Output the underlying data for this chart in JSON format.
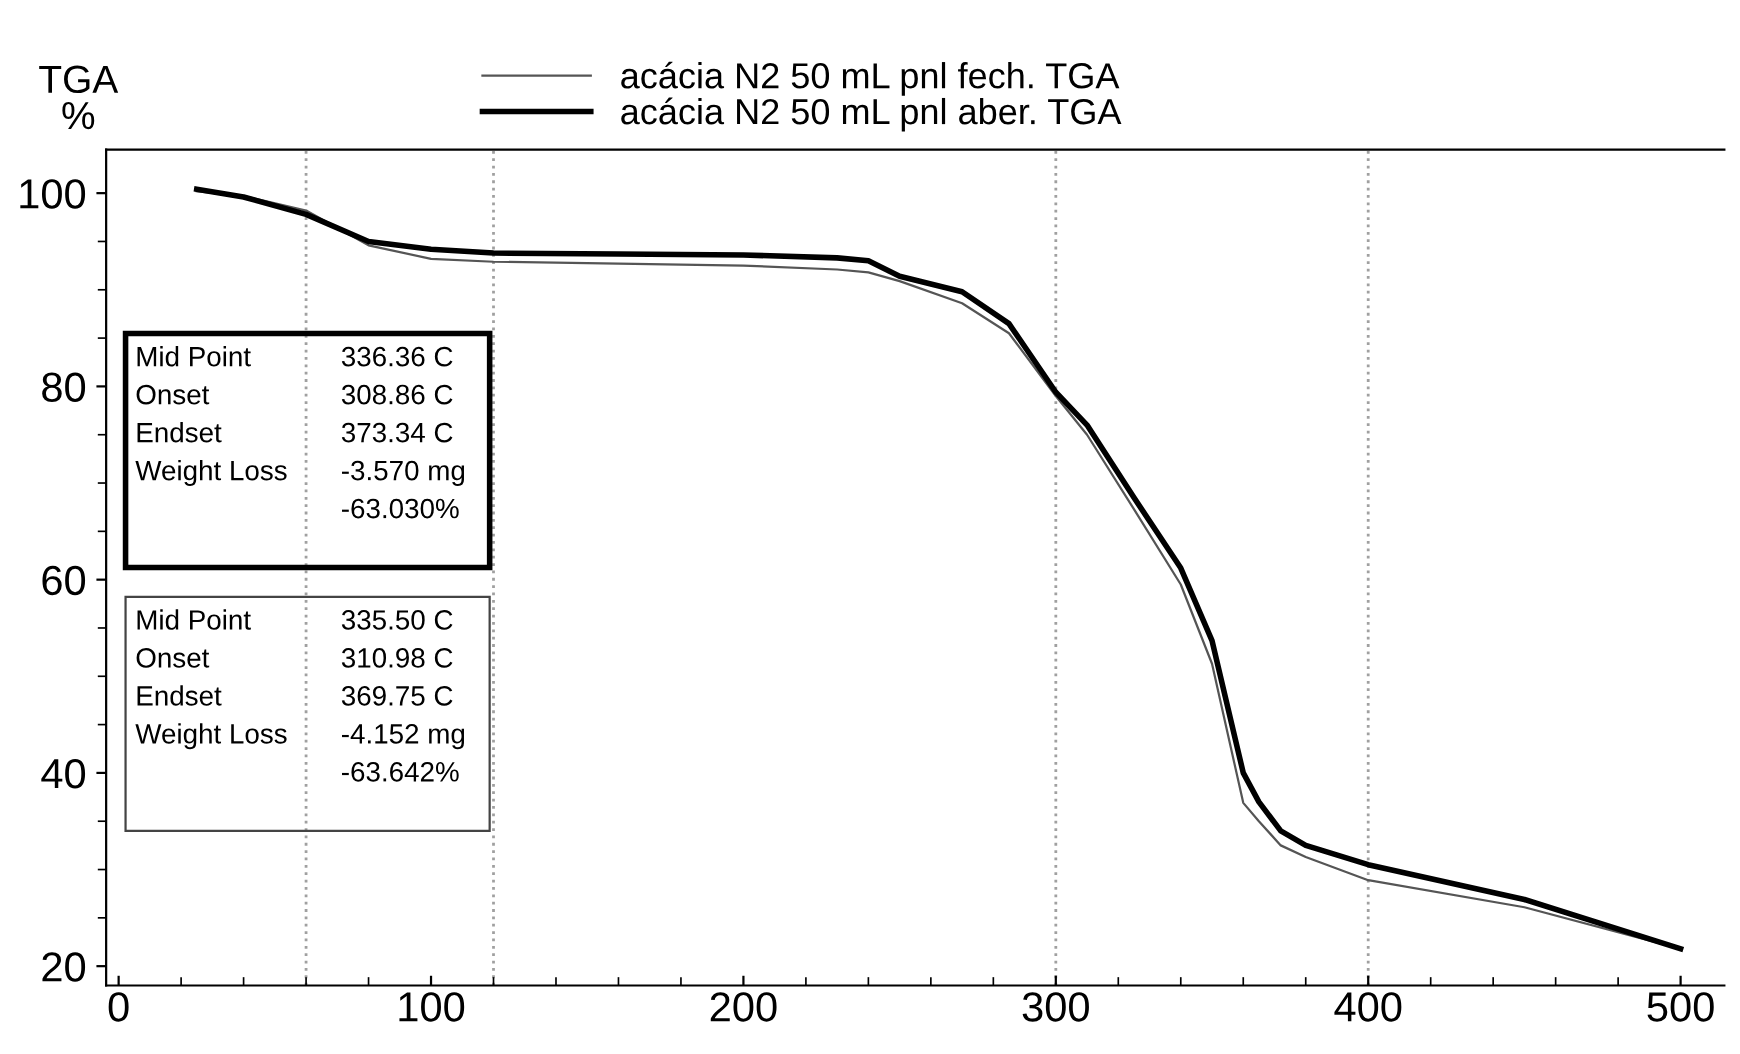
{
  "chart_data": {
    "type": "line",
    "ylabel": "TGA\n%",
    "legend": "top",
    "xlim": [
      -4,
      514
    ],
    "ylim": [
      18,
      104.5
    ],
    "xticks": [
      0,
      100,
      200,
      300,
      400,
      500
    ],
    "yticks": [
      20,
      40,
      60,
      80,
      100
    ],
    "grid": false,
    "series": [
      {
        "name": "acácia N2 50 mL pnl fech. TGA",
        "color": "#555555",
        "x": [
          25,
          40,
          60,
          80,
          100,
          120,
          160,
          200,
          230,
          240,
          250,
          270,
          285,
          300,
          310,
          325,
          340,
          350,
          360,
          365,
          372,
          380,
          400,
          450,
          500
        ],
        "values": [
          100.2,
          99.7,
          98.2,
          94.6,
          93.2,
          92.9,
          92.7,
          92.5,
          92.1,
          91.8,
          90.9,
          88.6,
          85.5,
          79.0,
          75.0,
          67.3,
          59.5,
          51.3,
          36.9,
          35.0,
          32.5,
          31.3,
          28.9,
          26.1,
          21.8
        ]
      },
      {
        "name": "acácia N2 50 mL pnl aber. TGA",
        "color": "#000000",
        "x": [
          25,
          40,
          60,
          80,
          100,
          120,
          160,
          200,
          230,
          240,
          250,
          270,
          285,
          300,
          310,
          325,
          340,
          350,
          360,
          365,
          372,
          380,
          400,
          450,
          500
        ],
        "values": [
          100.4,
          99.6,
          97.8,
          95.0,
          94.2,
          93.8,
          93.7,
          93.6,
          93.3,
          93.0,
          91.4,
          89.8,
          86.5,
          79.4,
          76.0,
          68.5,
          61.2,
          53.7,
          40.0,
          37.0,
          34.0,
          32.5,
          30.5,
          26.9,
          21.8
        ]
      }
    ],
    "ref_lines": [
      {
        "axis": "x",
        "value": 60,
        "color": "#a0a0a0",
        "line_style": "dotted"
      },
      {
        "axis": "x",
        "value": 120,
        "color": "#a0a0a0",
        "line_style": "dotted"
      },
      {
        "axis": "x",
        "value": 300,
        "color": "#a0a0a0",
        "line_style": "dotted"
      },
      {
        "axis": "x",
        "value": 400,
        "color": "#a0a0a0",
        "line_style": "dotted"
      }
    ],
    "annotations": [
      "Mid Point\nOnset\nEndset\nWeight Loss",
      "336.36 C\n308.86 C\n373.34 C\n-3.570 mg\n-63.030%",
      "Mid Point\nOnset\nEndset\nWeight Loss",
      "335.50 C\n310.98 C\n369.75 C\n-4.152 mg\n-63.642%"
    ]
  }
}
